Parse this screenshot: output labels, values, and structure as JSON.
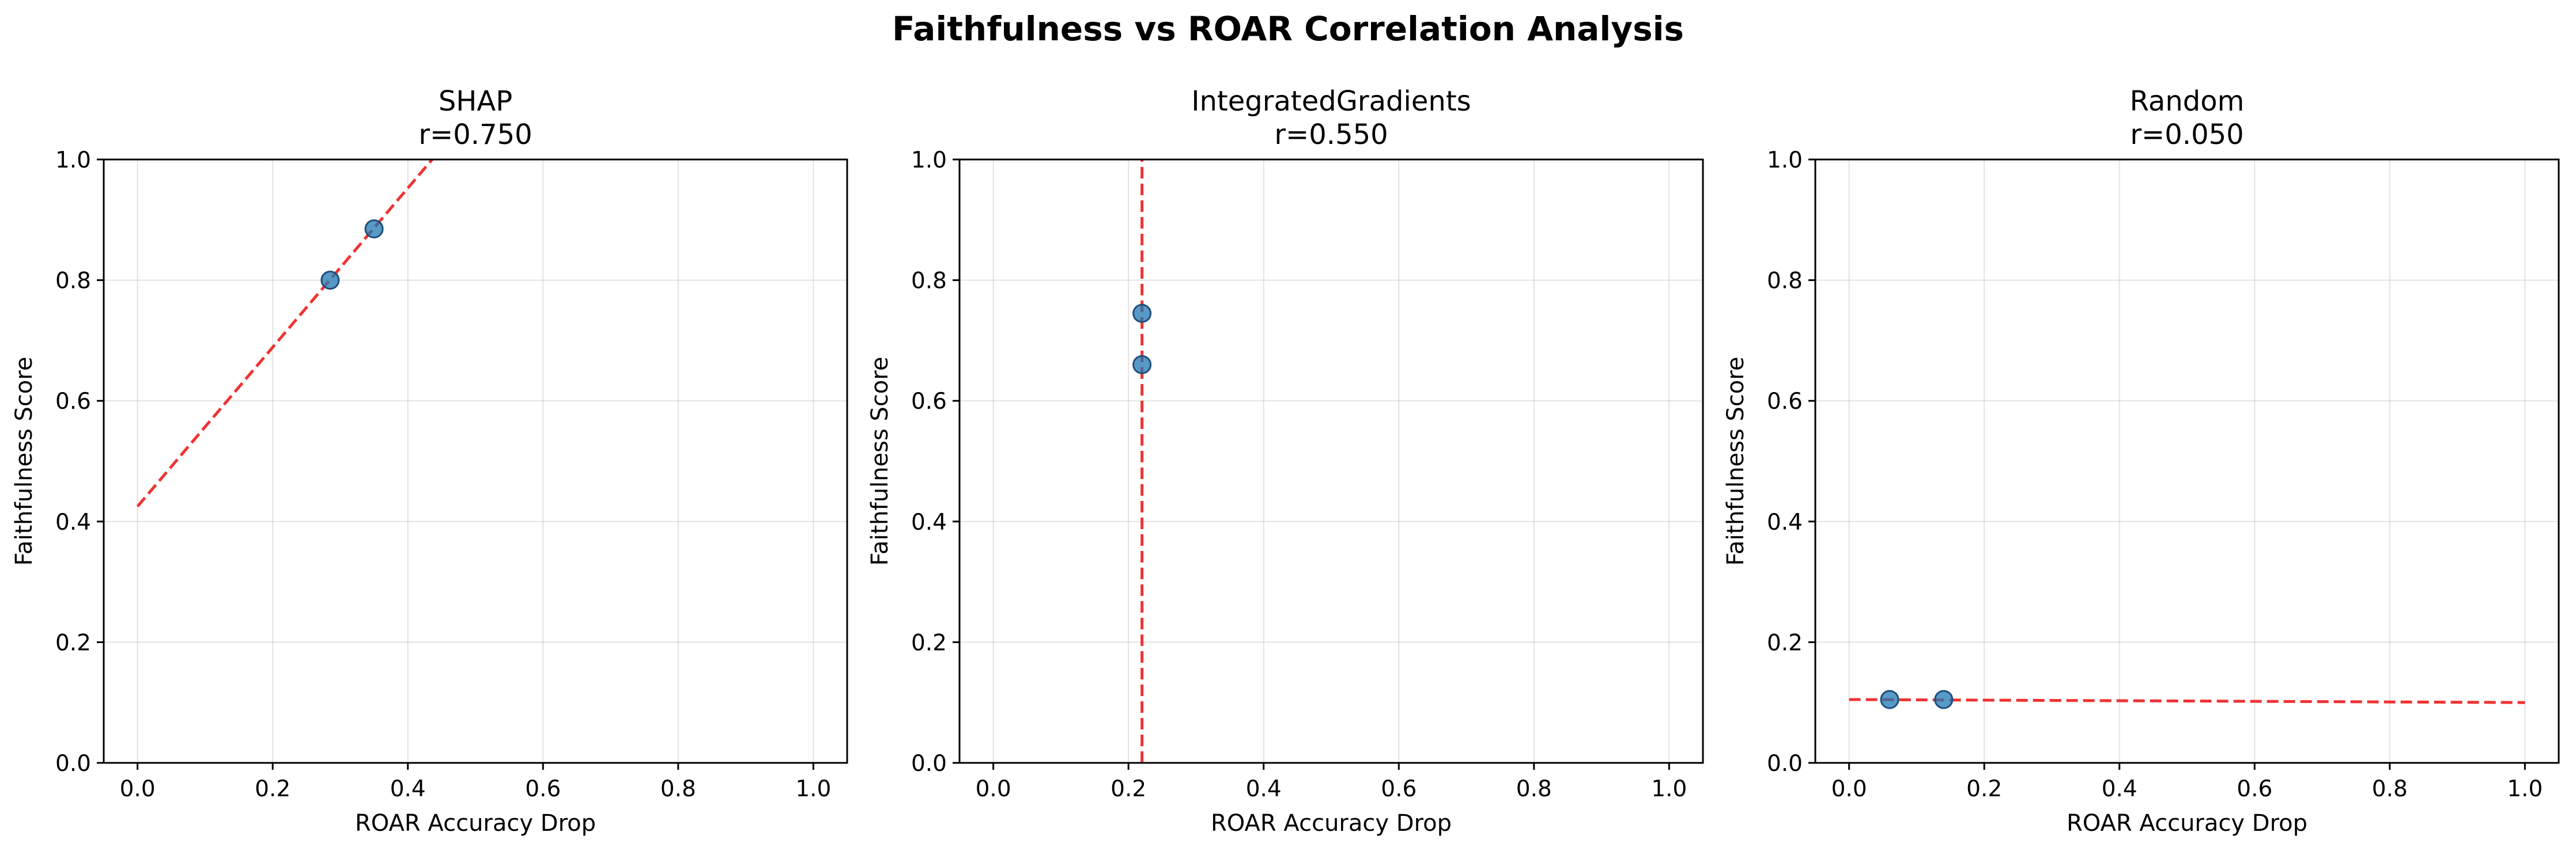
{
  "suptitle": "Faithfulness vs ROAR Correlation Analysis",
  "colors": {
    "points": "#1f77b4",
    "fit_line": "#ee1c1c"
  },
  "chart_data": [
    {
      "type": "scatter",
      "title": "SHAP",
      "subtitle": "r=0.750",
      "xlabel": "ROAR Accuracy Drop",
      "ylabel": "Faithfulness Score",
      "xlim": [
        -0.05,
        1.05
      ],
      "ylim": [
        0.0,
        1.0
      ],
      "xticks": [
        "0.0",
        "0.2",
        "0.4",
        "0.6",
        "0.8",
        "1.0"
      ],
      "yticks": [
        "0.0",
        "0.2",
        "0.4",
        "0.6",
        "0.8",
        "1.0"
      ],
      "grid": true,
      "points": [
        {
          "x": 0.285,
          "y": 0.8
        },
        {
          "x": 0.35,
          "y": 0.885
        }
      ],
      "fit_line": {
        "x": [
          0.0,
          0.436
        ],
        "y": [
          0.425,
          1.0
        ]
      }
    },
    {
      "type": "scatter",
      "title": "IntegratedGradients",
      "subtitle": "r=0.550",
      "xlabel": "ROAR Accuracy Drop",
      "ylabel": "Faithfulness Score",
      "xlim": [
        -0.05,
        1.05
      ],
      "ylim": [
        0.0,
        1.0
      ],
      "xticks": [
        "0.0",
        "0.2",
        "0.4",
        "0.6",
        "0.8",
        "1.0"
      ],
      "yticks": [
        "0.0",
        "0.2",
        "0.4",
        "0.6",
        "0.8",
        "1.0"
      ],
      "grid": true,
      "points": [
        {
          "x": 0.22,
          "y": 0.745
        },
        {
          "x": 0.22,
          "y": 0.66
        }
      ],
      "fit_line": {
        "x": [
          0.22,
          0.22
        ],
        "y": [
          0.0,
          1.0
        ]
      }
    },
    {
      "type": "scatter",
      "title": "Random",
      "subtitle": "r=0.050",
      "xlabel": "ROAR Accuracy Drop",
      "ylabel": "Faithfulness Score",
      "xlim": [
        -0.05,
        1.05
      ],
      "ylim": [
        0.0,
        1.0
      ],
      "xticks": [
        "0.0",
        "0.2",
        "0.4",
        "0.6",
        "0.8",
        "1.0"
      ],
      "yticks": [
        "0.0",
        "0.2",
        "0.4",
        "0.6",
        "0.8",
        "1.0"
      ],
      "grid": true,
      "points": [
        {
          "x": 0.06,
          "y": 0.105
        },
        {
          "x": 0.14,
          "y": 0.105
        }
      ],
      "fit_line": {
        "x": [
          0.0,
          1.0
        ],
        "y": [
          0.105,
          0.1
        ]
      }
    }
  ]
}
